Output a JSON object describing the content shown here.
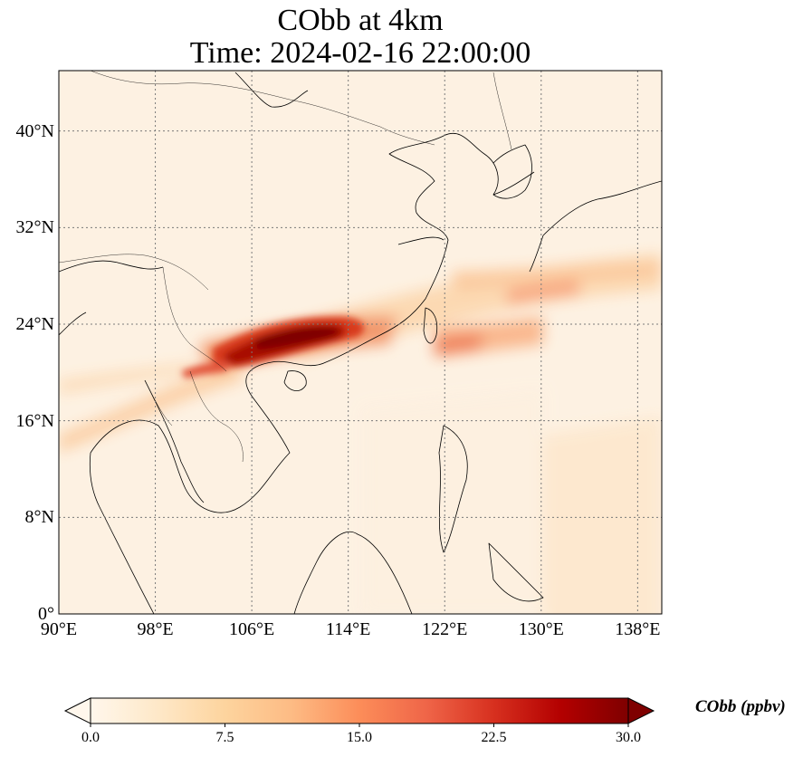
{
  "title": {
    "line1": "CObb at 4km",
    "line2": "Time: 2024-02-16 22:00:00"
  },
  "map": {
    "lon_range": [
      90,
      140
    ],
    "lat_range": [
      0,
      45
    ],
    "lon_ticks": [
      "90°E",
      "98°E",
      "106°E",
      "114°E",
      "122°E",
      "130°E",
      "138°E"
    ],
    "lon_tick_values": [
      90,
      98,
      106,
      114,
      122,
      130,
      138
    ],
    "lat_ticks": [
      "0°",
      "8°N",
      "16°N",
      "24°N",
      "32°N",
      "40°N"
    ],
    "lat_tick_values": [
      0,
      8,
      16,
      24,
      32,
      40
    ],
    "gridlines": true,
    "colormap": "OrRd",
    "colors": {
      "background": "#fff5e6",
      "coastline": "#000000",
      "grid": "#7a7a7a"
    }
  },
  "colorbar": {
    "label": "CObb (ppbv)",
    "range": [
      0,
      30
    ],
    "ticks": [
      "0.0",
      "7.5",
      "15.0",
      "22.5",
      "30.0"
    ],
    "tick_values": [
      0,
      7.5,
      15,
      22.5,
      30
    ],
    "extend": "both"
  }
}
